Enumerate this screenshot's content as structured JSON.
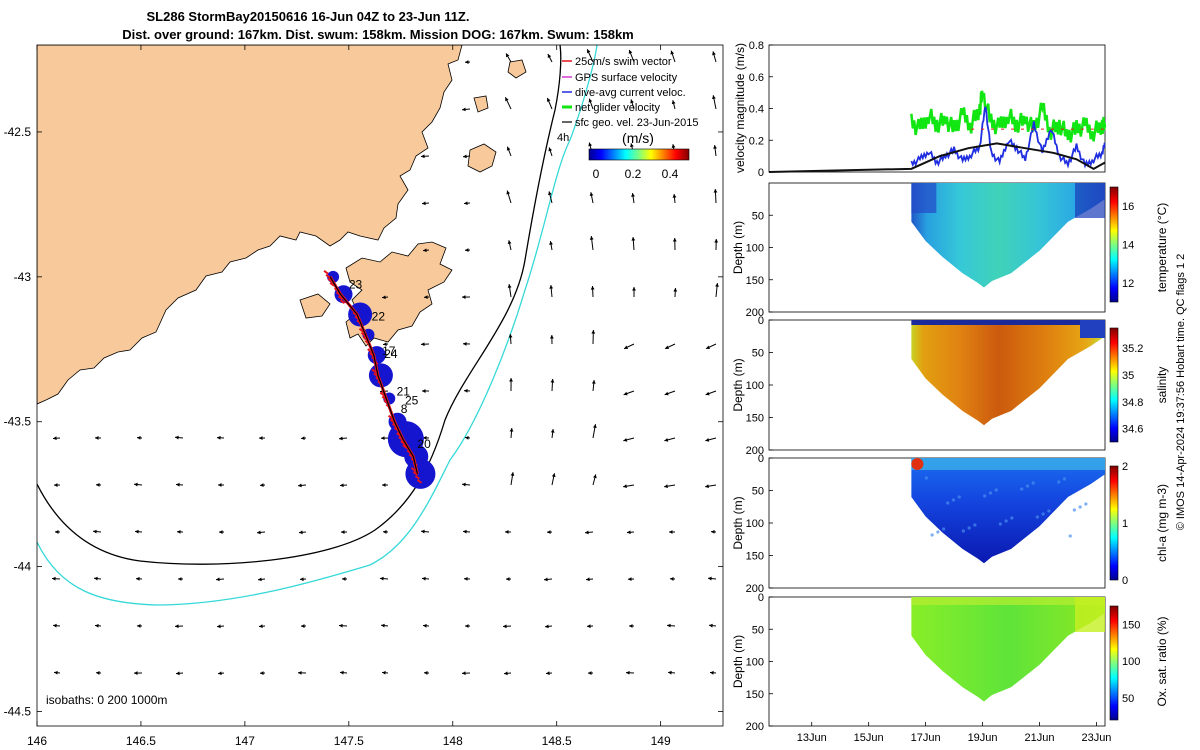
{
  "title_line1": "SL286 StormBay20150616 16-Jun 04Z to 23-Jun 11Z.",
  "title_line2": "Dist. over ground: 167km. Dist. swum: 158km. Mission DOG: 167km. Swum: 158km",
  "legend": {
    "items": [
      {
        "label": "25cm/s swim vector",
        "color": "#e8141b"
      },
      {
        "label": "GPS surface velocity",
        "color": "#d63ad6"
      },
      {
        "label": "dive-avg current veloc.",
        "color": "#1f2ee0"
      },
      {
        "label": "net glider velocity",
        "color": "#12e612"
      },
      {
        "label": "sfc geo. vel. 23-Jun-2015",
        "color": "#000000"
      }
    ],
    "corner_note": "4h",
    "colorbar_title": "(m/s)",
    "colorbar_ticks": [
      "0",
      "0.2",
      "0.4"
    ]
  },
  "footer_note": "© IMOS 14-Apr-2024 19:37:56 Hobart time. QC flags 1  2",
  "colors": {
    "land": "#f8c99a",
    "track": "#1515d0",
    "track_line": "#000000",
    "swim": "#e8141b",
    "isobath_200": "#000000",
    "isobath_1000": "#35d8d8"
  },
  "chart_data": [
    {
      "type": "map",
      "name": "track-map",
      "xlim": [
        146,
        149.3
      ],
      "ylim": [
        -44.55,
        -42.2
      ],
      "x_ticks": [
        "146",
        "146.5",
        "147",
        "147.5",
        "148",
        "148.5",
        "149"
      ],
      "y_ticks": [
        "-42.5",
        "-43",
        "-43.5",
        "-44",
        "-44.5"
      ],
      "isobath_label": "isobaths: 0   200   1000m",
      "waypoint_labels": [
        {
          "text": "23",
          "lon": 147.5,
          "lat": -43.04
        },
        {
          "text": "22",
          "lon": 147.61,
          "lat": -43.15
        },
        {
          "text": "17",
          "lon": 147.66,
          "lat": -43.27
        },
        {
          "text": "24",
          "lon": 147.67,
          "lat": -43.28
        },
        {
          "text": "21",
          "lon": 147.73,
          "lat": -43.41
        },
        {
          "text": "25",
          "lon": 147.77,
          "lat": -43.44
        },
        {
          "text": "8",
          "lon": 147.75,
          "lat": -43.47
        },
        {
          "text": "20",
          "lon": 147.83,
          "lat": -43.59
        }
      ],
      "track": [
        [
          147.41,
          -43.0
        ],
        [
          147.46,
          -43.06
        ],
        [
          147.54,
          -43.13
        ],
        [
          147.58,
          -43.2
        ],
        [
          147.62,
          -43.27
        ],
        [
          147.64,
          -43.34
        ],
        [
          147.68,
          -43.42
        ],
        [
          147.72,
          -43.5
        ],
        [
          147.76,
          -43.56
        ],
        [
          147.81,
          -43.62
        ],
        [
          147.83,
          -43.68
        ]
      ]
    },
    {
      "type": "line",
      "name": "velocity-magnitude",
      "ylabel": "velocity magnitude (m/s)",
      "ylim": [
        0,
        0.8
      ],
      "y_ticks": [
        "0",
        "0.2",
        "0.4",
        "0.6",
        "0.8"
      ],
      "x_range_days": [
        11.5,
        23.3
      ],
      "series": [
        {
          "name": "net glider velocity",
          "color": "#12e612",
          "x": [
            16.5,
            16.8,
            17.1,
            17.4,
            17.7,
            18.0,
            18.3,
            18.6,
            18.9,
            19.0,
            19.3,
            19.6,
            19.9,
            20.2,
            20.5,
            20.8,
            21.1,
            21.4,
            21.7,
            22.0,
            22.3,
            22.6,
            22.9,
            23.2,
            23.3
          ],
          "y": [
            0.31,
            0.27,
            0.36,
            0.3,
            0.33,
            0.27,
            0.36,
            0.3,
            0.4,
            0.5,
            0.31,
            0.28,
            0.36,
            0.3,
            0.33,
            0.27,
            0.4,
            0.26,
            0.3,
            0.23,
            0.27,
            0.29,
            0.25,
            0.3,
            0.28
          ]
        },
        {
          "name": "dive-avg current veloc.",
          "color": "#1f2ee0",
          "x": [
            16.5,
            16.8,
            17.1,
            17.4,
            17.7,
            18.0,
            18.3,
            18.6,
            18.9,
            19.1,
            19.3,
            19.6,
            19.9,
            20.2,
            20.5,
            20.8,
            21.1,
            21.4,
            21.7,
            22.0,
            22.3,
            22.6,
            22.9,
            23.2,
            23.3
          ],
          "y": [
            0.05,
            0.08,
            0.13,
            0.06,
            0.1,
            0.14,
            0.07,
            0.11,
            0.16,
            0.42,
            0.12,
            0.06,
            0.2,
            0.15,
            0.08,
            0.3,
            0.12,
            0.28,
            0.1,
            0.05,
            0.16,
            0.04,
            0.08,
            0.12,
            0.18
          ]
        },
        {
          "name": "sfc geo. vel.",
          "color": "#111111",
          "x": [
            11.5,
            16.5,
            17.5,
            18.5,
            19.5,
            20.5,
            21.5,
            22.3,
            22.9,
            23.3
          ],
          "y": [
            0,
            0.02,
            0.1,
            0.15,
            0.18,
            0.15,
            0.12,
            0.08,
            0.02,
            0.06
          ]
        }
      ]
    },
    {
      "type": "heatmap",
      "name": "temperature-section",
      "ylabel": "Depth (m)",
      "cbar_label": "temperature (°C)",
      "ylim": [
        200,
        0
      ],
      "y_ticks": [
        "50",
        "100",
        "150",
        "200"
      ],
      "clim": [
        11,
        17
      ],
      "cbar_ticks": [
        "12",
        "14",
        "16"
      ],
      "x_range_days": [
        16.5,
        23.3
      ],
      "max_depth": 162
    },
    {
      "type": "heatmap",
      "name": "salinity-section",
      "ylabel": "Depth (m)",
      "cbar_label": "salinity",
      "ylim": [
        200,
        0
      ],
      "y_ticks": [
        "0",
        "50",
        "100",
        "150",
        "200"
      ],
      "clim": [
        34.5,
        35.35
      ],
      "cbar_ticks": [
        "34.6",
        "34.8",
        "35",
        "35.2"
      ],
      "x_range_days": [
        16.5,
        23.3
      ],
      "max_depth": 162
    },
    {
      "type": "heatmap",
      "name": "chla-section",
      "ylabel": "Depth (m)",
      "cbar_label": "chl-a (mg m-3)",
      "ylim": [
        200,
        0
      ],
      "y_ticks": [
        "0",
        "50",
        "100",
        "150",
        "200"
      ],
      "clim": [
        0,
        2
      ],
      "cbar_ticks": [
        "0",
        "1",
        "2"
      ],
      "x_range_days": [
        16.5,
        23.3
      ],
      "max_depth": 162
    },
    {
      "type": "heatmap",
      "name": "oxygen-section",
      "ylabel": "Depth (m)",
      "cbar_label": "Ox. sat. ratio (%)",
      "ylim": [
        200,
        0
      ],
      "y_ticks": [
        "0",
        "50",
        "100",
        "150",
        "200"
      ],
      "clim": [
        20,
        175
      ],
      "cbar_ticks": [
        "50",
        "100",
        "150"
      ],
      "x_range_days": [
        16.5,
        23.3
      ],
      "max_depth": 162,
      "x_ticks": [
        "13Jun",
        "15Jun",
        "17Jun",
        "19Jun",
        "21Jun",
        "23Jun"
      ]
    }
  ]
}
